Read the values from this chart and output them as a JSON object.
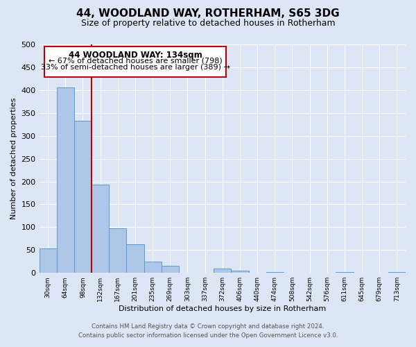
{
  "title": "44, WOODLAND WAY, ROTHERHAM, S65 3DG",
  "subtitle": "Size of property relative to detached houses in Rotherham",
  "xlabel": "Distribution of detached houses by size in Rotherham",
  "ylabel": "Number of detached properties",
  "bar_labels": [
    "30sqm",
    "64sqm",
    "98sqm",
    "132sqm",
    "167sqm",
    "201sqm",
    "235sqm",
    "269sqm",
    "303sqm",
    "337sqm",
    "372sqm",
    "406sqm",
    "440sqm",
    "474sqm",
    "508sqm",
    "542sqm",
    "576sqm",
    "611sqm",
    "645sqm",
    "679sqm",
    "713sqm"
  ],
  "bar_values": [
    53,
    406,
    333,
    193,
    98,
    63,
    25,
    15,
    0,
    0,
    10,
    5,
    0,
    2,
    0,
    0,
    0,
    2,
    0,
    0,
    2
  ],
  "bar_color": "#aec6e8",
  "bar_edgecolor": "#5b9bd5",
  "vline_x": 3,
  "vline_color": "#c00000",
  "annotation_title": "44 WOODLAND WAY: 134sqm",
  "annotation_line1": "← 67% of detached houses are smaller (798)",
  "annotation_line2": "33% of semi-detached houses are larger (389) →",
  "annotation_box_edgecolor": "#c00000",
  "annotation_box_facecolor": "#ffffff",
  "ylim": [
    0,
    500
  ],
  "yticks": [
    0,
    50,
    100,
    150,
    200,
    250,
    300,
    350,
    400,
    450,
    500
  ],
  "footer_line1": "Contains HM Land Registry data © Crown copyright and database right 2024.",
  "footer_line2": "Contains public sector information licensed under the Open Government Licence v3.0.",
  "bg_color": "#dce6f5",
  "plot_bg_color": "#dce6f5"
}
